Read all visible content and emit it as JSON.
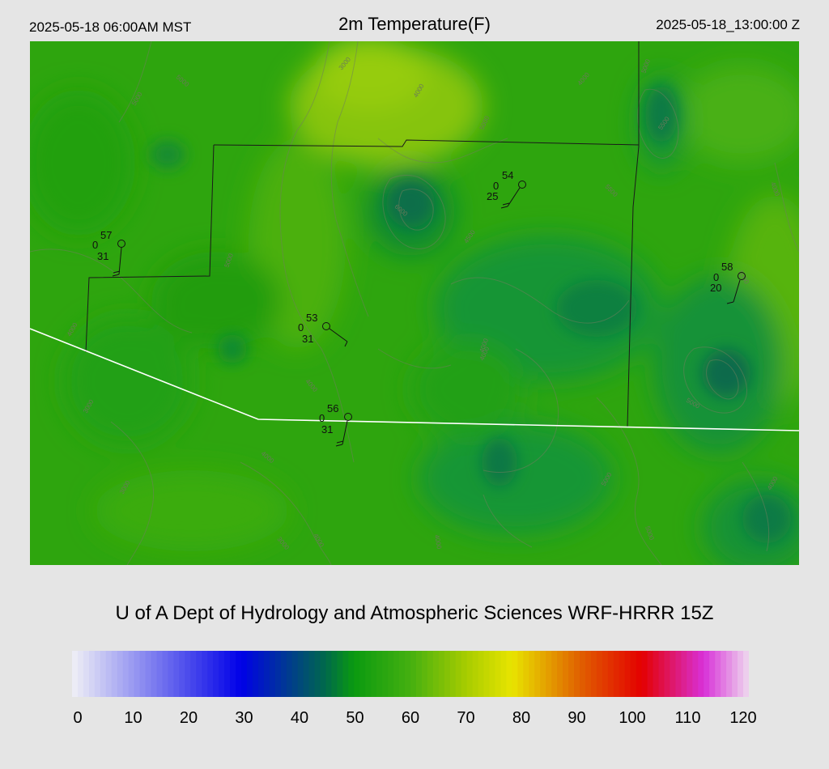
{
  "header": {
    "valid_local": "2025-05-18 06:00AM MST",
    "title": "2m Temperature(F)",
    "valid_utc": "2025-05-18_13:00:00 Z"
  },
  "credit": "U of A Dept of Hydrology and Atmospheric Sciences WRF-HRRR 15Z",
  "colorbar": {
    "min": 0,
    "max": 120,
    "tick_labels": [
      "0",
      "10",
      "20",
      "30",
      "40",
      "50",
      "60",
      "70",
      "80",
      "90",
      "100",
      "110",
      "120"
    ],
    "stops": [
      {
        "value": 0,
        "color": "#f0f0f6"
      },
      {
        "value": 30,
        "color": "#0000e8"
      },
      {
        "value": 45,
        "color": "#006a4a"
      },
      {
        "value": 50,
        "color": "#0a9a10"
      },
      {
        "value": 60,
        "color": "#45b010"
      },
      {
        "value": 70,
        "color": "#a8cc00"
      },
      {
        "value": 78,
        "color": "#e8e400"
      },
      {
        "value": 90,
        "color": "#e06000"
      },
      {
        "value": 101,
        "color": "#e40000"
      },
      {
        "value": 112,
        "color": "#d830d8"
      },
      {
        "value": 120,
        "color": "#eed8ee"
      }
    ]
  },
  "stations": [
    {
      "temp": "57",
      "dew": "31",
      "mid": "0"
    },
    {
      "temp": "54",
      "dew": "25",
      "mid": "0"
    },
    {
      "temp": "53",
      "dew": "31",
      "mid": "0"
    },
    {
      "temp": "56",
      "dew": "31",
      "mid": "0"
    },
    {
      "temp": "58",
      "dew": "20",
      "mid": "0"
    }
  ],
  "contour_labels": [
    "3000",
    "4000",
    "5000",
    "6000",
    "3500",
    "4500",
    "5500"
  ]
}
